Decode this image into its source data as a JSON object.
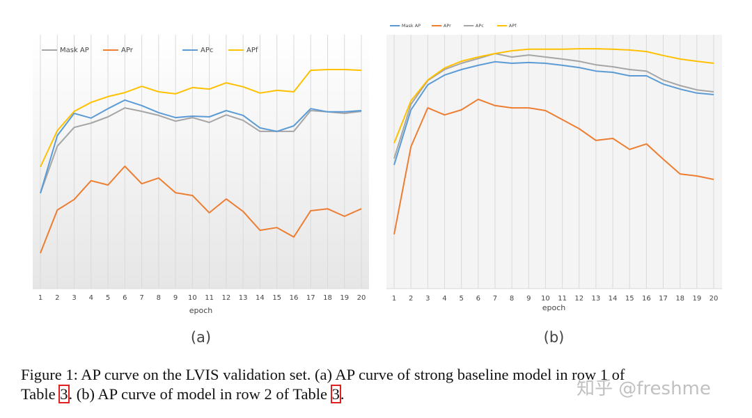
{
  "chart_data": [
    {
      "type": "line",
      "sublabel": "(a)",
      "x_label": "epoch",
      "categories": [
        "1",
        "2",
        "3",
        "4",
        "5",
        "6",
        "7",
        "8",
        "9",
        "10",
        "11",
        "12",
        "13",
        "14",
        "15",
        "16",
        "17",
        "18",
        "19",
        "20"
      ],
      "ylim": [
        0,
        100
      ],
      "grid": true,
      "legend": "top-left",
      "series": [
        {
          "name": "Mask AP",
          "color": "#a5a5a5",
          "values": [
            38.1,
            56.9,
            64.4,
            66.1,
            68.6,
            72.2,
            70.8,
            69.2,
            66.9,
            68.3,
            66.4,
            69.4,
            67.2,
            62.8,
            62.8,
            62.8,
            71.1,
            70.6,
            70.0,
            70.8
          ]
        },
        {
          "name": "APr",
          "color": "#ed7d31",
          "values": [
            14.2,
            31.4,
            35.6,
            43.1,
            41.4,
            48.9,
            41.9,
            44.2,
            38.3,
            37.2,
            30.3,
            35.8,
            30.8,
            23.3,
            24.4,
            20.6,
            31.1,
            31.9,
            28.9,
            31.9
          ]
        },
        {
          "name": "APc",
          "color": "#5b9bd5",
          "values": [
            38.1,
            61.1,
            70.0,
            68.1,
            71.9,
            75.3,
            73.1,
            70.3,
            68.3,
            68.9,
            68.6,
            71.1,
            69.2,
            64.2,
            62.8,
            65.0,
            71.9,
            70.6,
            70.6,
            71.1
          ]
        },
        {
          "name": "APf",
          "color": "#ffc000",
          "values": [
            48.6,
            63.1,
            70.8,
            74.4,
            76.7,
            78.3,
            80.8,
            78.6,
            77.8,
            80.3,
            79.7,
            82.2,
            80.6,
            78.1,
            79.2,
            78.6,
            87.2,
            87.5,
            87.5,
            87.2
          ]
        }
      ]
    },
    {
      "type": "line",
      "sublabel": "(b)",
      "x_label": "epoch",
      "categories": [
        "1",
        "2",
        "3",
        "4",
        "5",
        "6",
        "7",
        "8",
        "9",
        "10",
        "11",
        "12",
        "13",
        "14",
        "15",
        "16",
        "17",
        "18",
        "19",
        "20"
      ],
      "ylim": [
        0,
        100
      ],
      "grid": true,
      "legend": "top-left",
      "series": [
        {
          "name": "Mask AP",
          "color": "#5b9bd5",
          "values": [
            49.4,
            71.4,
            81.4,
            85.3,
            87.5,
            89.2,
            90.6,
            90.0,
            90.3,
            90.0,
            89.2,
            88.3,
            86.9,
            86.4,
            85.0,
            85.0,
            81.7,
            79.7,
            78.1,
            77.5
          ]
        },
        {
          "name": "APr",
          "color": "#ed7d31",
          "values": [
            21.7,
            56.7,
            72.2,
            69.4,
            71.4,
            75.6,
            73.1,
            72.2,
            72.2,
            71.1,
            67.5,
            63.9,
            59.2,
            60.0,
            55.6,
            57.8,
            51.7,
            45.8,
            45.0,
            43.6
          ]
        },
        {
          "name": "APc",
          "color": "#a5a5a5",
          "values": [
            51.9,
            73.6,
            83.1,
            87.5,
            90.0,
            91.9,
            93.9,
            92.5,
            93.3,
            92.5,
            91.7,
            90.8,
            89.4,
            88.6,
            87.5,
            86.9,
            83.3,
            81.1,
            79.4,
            78.6
          ]
        },
        {
          "name": "APf",
          "color": "#ffc000",
          "values": [
            58.1,
            75.0,
            83.3,
            88.1,
            90.8,
            92.5,
            93.9,
            95.0,
            95.6,
            95.6,
            95.6,
            95.8,
            95.8,
            95.6,
            95.3,
            94.7,
            93.1,
            91.7,
            90.8,
            90.0
          ]
        }
      ]
    }
  ],
  "caption": {
    "parts": [
      "Figure 1: AP curve on the LVIS validation set. (a) AP curve of strong baseline model in row 1 of",
      "Table ",
      "3",
      ". (b) AP curve of model in row 2 of Table ",
      "3",
      "."
    ]
  },
  "watermark": "知乎 @freshme"
}
